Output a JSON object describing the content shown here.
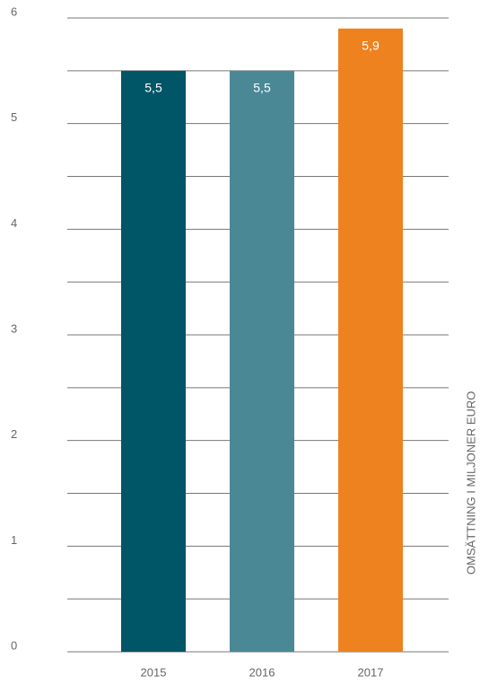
{
  "chart_data": {
    "type": "bar",
    "categories": [
      "2015",
      "2016",
      "2017"
    ],
    "values": [
      5.5,
      5.5,
      5.9
    ],
    "value_labels": [
      "5,5",
      "5,5",
      "5,9"
    ],
    "colors": [
      "#005566",
      "#4a8896",
      "#ee821e"
    ],
    "ylabel": "OMSÄTTNING I MILJONER EURO",
    "ylim": [
      0,
      6
    ],
    "yticks": [
      0,
      1,
      2,
      3,
      4,
      5,
      6
    ],
    "minor_yticks": [
      0.5,
      1.5,
      2.5,
      3.5,
      4.5,
      5.5
    ],
    "grid": true
  }
}
